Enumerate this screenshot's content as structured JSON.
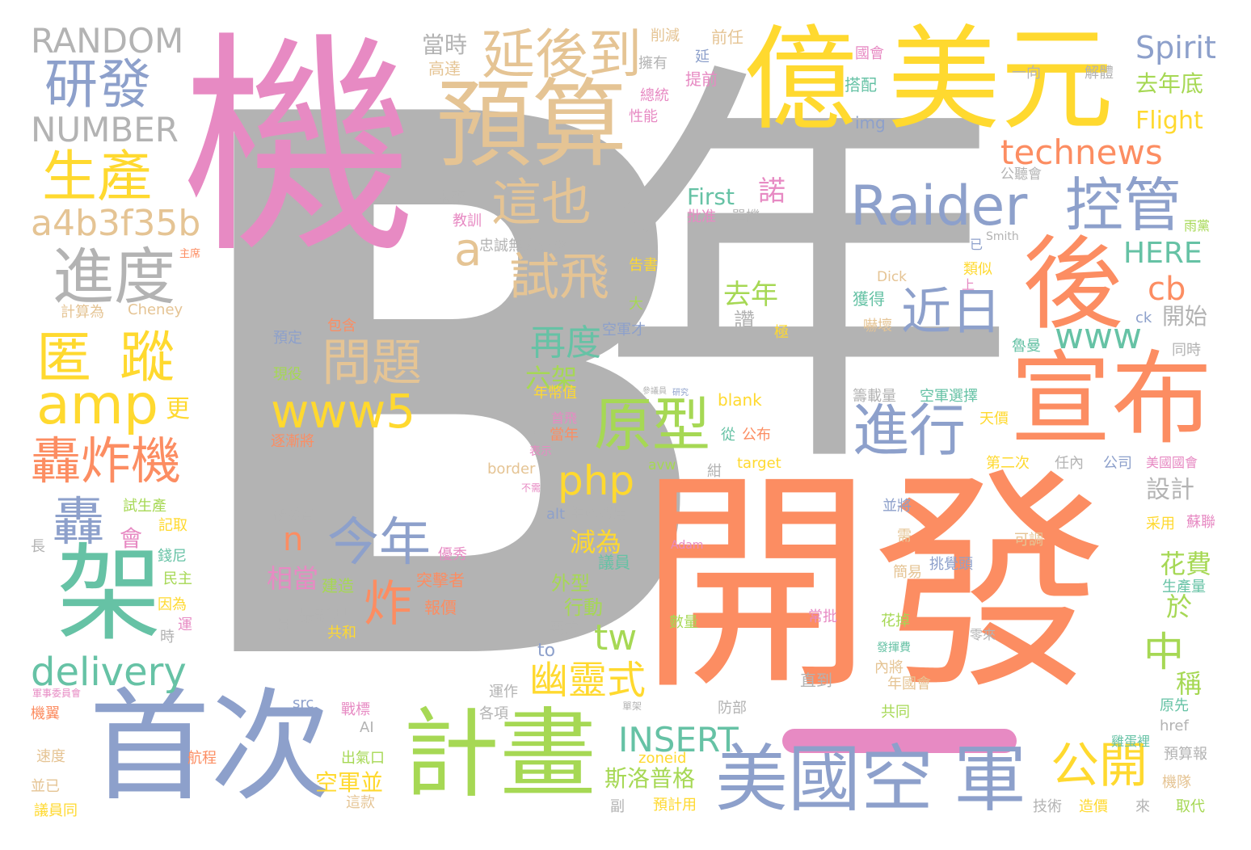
{
  "palette": {
    "grey": "#b3b3b3",
    "pink": "#e78ac3",
    "orange": "#fc8d62",
    "gold": "#e5c494",
    "yellow": "#ffd92f",
    "blue": "#8da0cb",
    "green": "#66c2a5",
    "lime": "#a6d854"
  },
  "words": [
    {
      "text": "B",
      "color": "grey"
    },
    {
      "text": "年",
      "color": "grey"
    },
    {
      "text": "機",
      "color": "pink"
    },
    {
      "text": "開發",
      "color": "orange"
    },
    {
      "text": "億",
      "color": "yellow"
    },
    {
      "text": "美元",
      "color": "yellow"
    },
    {
      "text": "預算",
      "color": "gold"
    },
    {
      "text": "延後到",
      "color": "gold"
    },
    {
      "text": "首次",
      "color": "blue"
    },
    {
      "text": "計畫",
      "color": "lime"
    },
    {
      "text": "宣布",
      "color": "orange"
    },
    {
      "text": "後",
      "color": "orange"
    },
    {
      "text": "美國空",
      "color": "blue"
    },
    {
      "text": "軍",
      "color": "blue"
    },
    {
      "text": "架",
      "color": "green"
    },
    {
      "text": "Raider",
      "color": "blue"
    },
    {
      "text": "控管",
      "color": "blue"
    },
    {
      "text": "原型",
      "color": "lime"
    },
    {
      "text": "進行",
      "color": "blue"
    },
    {
      "text": "研發",
      "color": "blue"
    },
    {
      "text": "生產",
      "color": "yellow"
    },
    {
      "text": "進度",
      "color": "grey"
    },
    {
      "text": "匿",
      "color": "yellow"
    },
    {
      "text": "蹤",
      "color": "yellow"
    },
    {
      "text": "amp",
      "color": "yellow"
    },
    {
      "text": "轟炸機",
      "color": "orange"
    },
    {
      "text": "轟",
      "color": "blue"
    },
    {
      "text": "delivery",
      "color": "green"
    },
    {
      "text": "RANDOM",
      "color": "grey"
    },
    {
      "text": "NUMBER",
      "color": "grey"
    },
    {
      "text": "a4b3f35b",
      "color": "gold"
    },
    {
      "text": "這也",
      "color": "gold"
    },
    {
      "text": "a",
      "color": "gold"
    },
    {
      "text": "試飛",
      "color": "gold"
    },
    {
      "text": "問題",
      "color": "gold"
    },
    {
      "text": "www5",
      "color": "yellow"
    },
    {
      "text": "php",
      "color": "yellow"
    },
    {
      "text": "今年",
      "color": "blue"
    },
    {
      "text": "n",
      "color": "orange"
    },
    {
      "text": "炸",
      "color": "orange"
    },
    {
      "text": "近日",
      "color": "blue"
    },
    {
      "text": "www",
      "color": "green"
    },
    {
      "text": "technews",
      "color": "orange"
    },
    {
      "text": "公開",
      "color": "yellow"
    },
    {
      "text": "中",
      "color": "lime"
    },
    {
      "text": "cb",
      "color": "orange"
    },
    {
      "text": "HERE",
      "color": "green"
    },
    {
      "text": "INSERT",
      "color": "green"
    },
    {
      "text": "幽靈式",
      "color": "yellow"
    },
    {
      "text": "tw",
      "color": "lime"
    },
    {
      "text": "再度",
      "color": "green"
    },
    {
      "text": "去年",
      "color": "lime"
    },
    {
      "text": "Spirit",
      "color": "blue"
    },
    {
      "text": "去年底",
      "color": "lime"
    },
    {
      "text": "Flight",
      "color": "yellow"
    },
    {
      "text": "當時",
      "color": "grey"
    },
    {
      "text": "First",
      "color": "green"
    },
    {
      "text": "諾",
      "color": "pink"
    },
    {
      "text": "斯洛普格",
      "color": "lime"
    },
    {
      "text": "空軍並",
      "color": "yellow"
    },
    {
      "text": "相當",
      "color": "pink"
    },
    {
      "text": "六架",
      "color": "lime"
    },
    {
      "text": "減為",
      "color": "yellow"
    },
    {
      "text": "設計",
      "color": "grey"
    },
    {
      "text": "花費",
      "color": "lime"
    },
    {
      "text": "於",
      "color": "lime"
    },
    {
      "text": "稱",
      "color": "lime"
    },
    {
      "text": "開始",
      "color": "grey"
    },
    {
      "text": "忠誠無人僚機",
      "color": "grey"
    },
    {
      "text": "研發費",
      "color": "grey"
    },
    {
      "text": "建造",
      "color": "lime"
    },
    {
      "text": "最新型",
      "color": "grey"
    },
    {
      "text": "突擊者",
      "color": "orange"
    },
    {
      "text": "報價",
      "color": "orange"
    },
    {
      "text": "優秀",
      "color": "pink"
    },
    {
      "text": "外型",
      "color": "lime"
    },
    {
      "text": "行動",
      "color": "lime"
    },
    {
      "text": "議員",
      "color": "green"
    },
    {
      "text": "更",
      "color": "yellow"
    },
    {
      "text": "會",
      "color": "pink"
    },
    {
      "text": "高達",
      "color": "gold"
    },
    {
      "text": "擁有",
      "color": "grey"
    },
    {
      "text": "削減",
      "color": "gold"
    },
    {
      "text": "前任",
      "color": "gold"
    },
    {
      "text": "延",
      "color": "blue"
    },
    {
      "text": "提前",
      "color": "pink"
    },
    {
      "text": "總統",
      "color": "pink"
    },
    {
      "text": "性能",
      "color": "pink"
    },
    {
      "text": "國會",
      "color": "pink"
    },
    {
      "text": "搭配",
      "color": "green"
    },
    {
      "text": "img",
      "color": "blue"
    },
    {
      "text": "一向",
      "color": "grey"
    },
    {
      "text": "解體",
      "color": "grey"
    },
    {
      "text": "公聽會",
      "color": "grey"
    },
    {
      "text": "未來",
      "color": "grey"
    },
    {
      "text": "教訓",
      "color": "pink"
    },
    {
      "text": "批准",
      "color": "pink"
    },
    {
      "text": "單機",
      "color": "grey"
    },
    {
      "text": "雨黨",
      "color": "lime"
    },
    {
      "text": "Smith",
      "color": "grey"
    },
    {
      "text": "已",
      "color": "blue"
    },
    {
      "text": "告書",
      "color": "yellow"
    },
    {
      "text": "類似",
      "color": "yellow"
    },
    {
      "text": "Dick",
      "color": "gold"
    },
    {
      "text": "上",
      "color": "pink"
    },
    {
      "text": "Cheney",
      "color": "gold"
    },
    {
      "text": "計算為",
      "color": "gold"
    },
    {
      "text": "主席",
      "color": "orange"
    },
    {
      "text": "大",
      "color": "lime"
    },
    {
      "text": "讚",
      "color": "grey"
    },
    {
      "text": "獲得",
      "color": "green"
    },
    {
      "text": "ck",
      "color": "blue"
    },
    {
      "text": "空軍才",
      "color": "blue"
    },
    {
      "text": "極",
      "color": "yellow"
    },
    {
      "text": "嚇壞",
      "color": "gold"
    },
    {
      "text": "同時",
      "color": "grey"
    },
    {
      "text": "魯曼",
      "color": "green"
    },
    {
      "text": "預定",
      "color": "blue"
    },
    {
      "text": "包含",
      "color": "orange"
    },
    {
      "text": "現役",
      "color": "lime"
    },
    {
      "text": "年幣值",
      "color": "yellow"
    },
    {
      "text": "blank",
      "color": "yellow"
    },
    {
      "text": "籌載量",
      "color": "grey"
    },
    {
      "text": "空軍選擇",
      "color": "green"
    },
    {
      "text": "天價",
      "color": "yellow"
    },
    {
      "text": "首飛",
      "color": "pink"
    },
    {
      "text": "當年",
      "color": "orange"
    },
    {
      "text": "軍",
      "color": "grey"
    },
    {
      "text": "從",
      "color": "green"
    },
    {
      "text": "表示",
      "color": "pink"
    },
    {
      "text": "公布",
      "color": "orange"
    },
    {
      "text": "逐漸將",
      "color": "orange"
    },
    {
      "text": "border",
      "color": "gold"
    },
    {
      "text": "avw",
      "color": "lime"
    },
    {
      "text": "target",
      "color": "yellow"
    },
    {
      "text": "第二次",
      "color": "yellow"
    },
    {
      "text": "任內",
      "color": "grey"
    },
    {
      "text": "公司",
      "color": "blue"
    },
    {
      "text": "美國國會",
      "color": "pink"
    },
    {
      "text": "不需",
      "color": "pink"
    },
    {
      "text": "紺",
      "color": "grey"
    },
    {
      "text": "試生產",
      "color": "lime"
    },
    {
      "text": "記取",
      "color": "yellow"
    },
    {
      "text": "alt",
      "color": "blue"
    },
    {
      "text": "生產費用",
      "color": "grey"
    },
    {
      "text": "並將",
      "color": "blue"
    },
    {
      "text": "采用",
      "color": "yellow"
    },
    {
      "text": "蘇聯",
      "color": "pink"
    },
    {
      "text": "長",
      "color": "grey"
    },
    {
      "text": "Adam",
      "color": "pink"
    },
    {
      "text": "可調",
      "color": "gold"
    },
    {
      "text": "需",
      "color": "gold"
    },
    {
      "text": "簡易",
      "color": "gold"
    },
    {
      "text": "挑覺頭",
      "color": "blue"
    },
    {
      "text": "生產量",
      "color": "green"
    },
    {
      "text": "錢尼",
      "color": "green"
    },
    {
      "text": "民主",
      "color": "lime"
    },
    {
      "text": "因為",
      "color": "yellow"
    },
    {
      "text": "運",
      "color": "pink"
    },
    {
      "text": "時",
      "color": "grey"
    },
    {
      "text": "月",
      "color": "grey"
    },
    {
      "text": "共和",
      "color": "yellow"
    },
    {
      "text": "數量",
      "color": "lime"
    },
    {
      "text": "要求",
      "color": "grey"
    },
    {
      "text": "常批",
      "color": "pink"
    },
    {
      "text": "花掉",
      "color": "lime"
    },
    {
      "text": "零來",
      "color": "grey"
    },
    {
      "text": "發揮費",
      "color": "green"
    },
    {
      "text": "to",
      "color": "blue"
    },
    {
      "text": "運作",
      "color": "grey"
    },
    {
      "text": "各項",
      "color": "grey"
    },
    {
      "text": "直到",
      "color": "grey"
    },
    {
      "text": "內將",
      "color": "gold"
    },
    {
      "text": "年國會",
      "color": "gold"
    },
    {
      "text": "共同",
      "color": "lime"
    },
    {
      "text": "原先",
      "color": "green"
    },
    {
      "text": "href",
      "color": "grey"
    },
    {
      "text": "預算報",
      "color": "grey"
    },
    {
      "text": "雞蛋裡",
      "color": "green"
    },
    {
      "text": "機隊",
      "color": "gold"
    },
    {
      "text": "技術",
      "color": "grey"
    },
    {
      "text": "造價",
      "color": "yellow"
    },
    {
      "text": "來",
      "color": "grey"
    },
    {
      "text": "取代",
      "color": "lime"
    },
    {
      "text": "軍事委員會",
      "color": "pink"
    },
    {
      "text": "機翼",
      "color": "orange"
    },
    {
      "text": "src",
      "color": "blue"
    },
    {
      "text": "戰標",
      "color": "pink"
    },
    {
      "text": "AI",
      "color": "grey"
    },
    {
      "text": "速度",
      "color": "gold"
    },
    {
      "text": "航程",
      "color": "orange"
    },
    {
      "text": "出氣口",
      "color": "lime"
    },
    {
      "text": "並已",
      "color": "gold"
    },
    {
      "text": "這款",
      "color": "gold"
    },
    {
      "text": "議員同",
      "color": "yellow"
    },
    {
      "text": "zoneid",
      "color": "yellow"
    },
    {
      "text": "預計用",
      "color": "yellow"
    },
    {
      "text": "副",
      "color": "grey"
    },
    {
      "text": "防部",
      "color": "grey"
    },
    {
      "text": "單架",
      "color": "grey"
    },
    {
      "text": "研究",
      "color": "blue"
    },
    {
      "text": "參議員",
      "color": "grey"
    }
  ]
}
